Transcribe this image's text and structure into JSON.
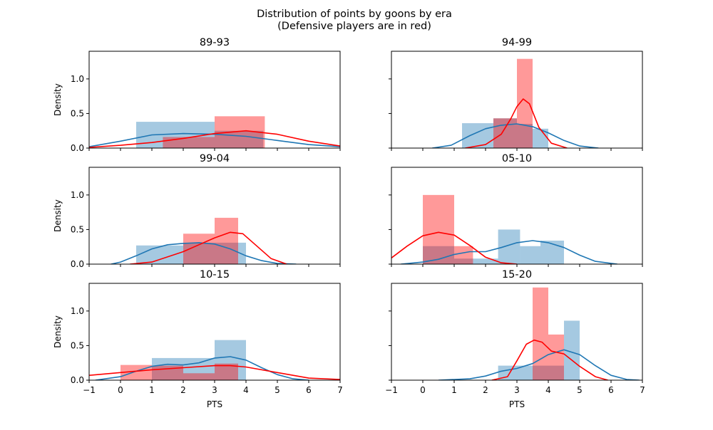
{
  "figure": {
    "suptitle_line1": "Distribution of points by goons by era",
    "suptitle_line2": "(Defensive players are in red)",
    "xlabel": "PTS",
    "ylabel": "Density"
  },
  "colors": {
    "blue_line": "#1f77b4",
    "blue_bar": "#1f77b4",
    "red_line": "#ff0000",
    "red_bar": "#ff0000"
  },
  "chart_data": [
    {
      "type": "bar",
      "title": "89-93",
      "xlim": [
        -1,
        7
      ],
      "ylim": [
        0,
        1.4
      ],
      "yticks": [
        "0.0",
        "0.5",
        "1.0"
      ],
      "series": [
        {
          "color": "blue",
          "bins": [
            {
              "x0": 0.5,
              "x1": 3.0,
              "h": 0.38
            },
            {
              "x0": 3.0,
              "x1": 4.55,
              "h": 0.25
            }
          ],
          "kde": [
            [
              -1.0,
              0.02
            ],
            [
              0.0,
              0.1
            ],
            [
              1.0,
              0.19
            ],
            [
              2.0,
              0.21
            ],
            [
              3.0,
              0.2
            ],
            [
              4.0,
              0.17
            ],
            [
              5.0,
              0.11
            ],
            [
              6.0,
              0.05
            ],
            [
              7.0,
              0.02
            ]
          ]
        },
        {
          "color": "red",
          "bins": [
            {
              "x0": 1.35,
              "x1": 3.0,
              "h": 0.16
            },
            {
              "x0": 3.0,
              "x1": 4.6,
              "h": 0.46
            }
          ],
          "kde": [
            [
              -1.0,
              0.01
            ],
            [
              0.0,
              0.04
            ],
            [
              1.0,
              0.08
            ],
            [
              2.0,
              0.14
            ],
            [
              3.0,
              0.21
            ],
            [
              4.0,
              0.25
            ],
            [
              5.0,
              0.2
            ],
            [
              6.0,
              0.1
            ],
            [
              7.0,
              0.03
            ]
          ]
        }
      ]
    },
    {
      "type": "bar",
      "title": "94-99",
      "xlim": [
        -1,
        7
      ],
      "ylim": [
        0,
        1.4
      ],
      "yticks": [],
      "series": [
        {
          "color": "blue",
          "bins": [
            {
              "x0": 1.25,
              "x1": 2.25,
              "h": 0.36
            },
            {
              "x0": 2.25,
              "x1": 3.0,
              "h": 0.43
            },
            {
              "x0": 3.0,
              "x1": 3.5,
              "h": 0.35
            },
            {
              "x0": 3.5,
              "x1": 4.0,
              "h": 0.28
            }
          ],
          "kde": [
            [
              0.3,
              0.0
            ],
            [
              0.9,
              0.04
            ],
            [
              1.5,
              0.18
            ],
            [
              2.0,
              0.28
            ],
            [
              2.5,
              0.33
            ],
            [
              3.0,
              0.35
            ],
            [
              3.5,
              0.31
            ],
            [
              4.0,
              0.22
            ],
            [
              4.5,
              0.11
            ],
            [
              5.0,
              0.03
            ],
            [
              5.6,
              0.0
            ]
          ]
        },
        {
          "color": "red",
          "bins": [
            {
              "x0": 2.25,
              "x1": 3.0,
              "h": 0.43
            },
            {
              "x0": 3.0,
              "x1": 3.5,
              "h": 1.29
            }
          ],
          "kde": [
            [
              1.35,
              0.0
            ],
            [
              2.0,
              0.05
            ],
            [
              2.5,
              0.2
            ],
            [
              2.8,
              0.42
            ],
            [
              3.0,
              0.6
            ],
            [
              3.2,
              0.71
            ],
            [
              3.4,
              0.64
            ],
            [
              3.7,
              0.3
            ],
            [
              4.1,
              0.07
            ],
            [
              4.6,
              0.0
            ]
          ]
        }
      ]
    },
    {
      "type": "bar",
      "title": "99-04",
      "xlim": [
        -1,
        7
      ],
      "ylim": [
        0,
        1.4
      ],
      "yticks": [
        "0.0",
        "0.5",
        "1.0"
      ],
      "series": [
        {
          "color": "blue",
          "bins": [
            {
              "x0": 0.5,
              "x1": 2.0,
              "h": 0.27
            },
            {
              "x0": 2.0,
              "x1": 4.0,
              "h": 0.31
            }
          ],
          "kde": [
            [
              -0.3,
              0.0
            ],
            [
              0.0,
              0.03
            ],
            [
              0.5,
              0.12
            ],
            [
              1.0,
              0.22
            ],
            [
              1.5,
              0.28
            ],
            [
              2.0,
              0.3
            ],
            [
              2.5,
              0.31
            ],
            [
              3.0,
              0.29
            ],
            [
              3.5,
              0.22
            ],
            [
              4.0,
              0.12
            ],
            [
              4.5,
              0.05
            ],
            [
              5.0,
              0.01
            ],
            [
              5.6,
              0.0
            ]
          ]
        },
        {
          "color": "red",
          "bins": [
            {
              "x0": 2.0,
              "x1": 3.0,
              "h": 0.44
            },
            {
              "x0": 3.0,
              "x1": 3.75,
              "h": 0.67
            }
          ],
          "kde": [
            [
              0.3,
              0.0
            ],
            [
              1.0,
              0.03
            ],
            [
              2.0,
              0.18
            ],
            [
              2.5,
              0.28
            ],
            [
              3.0,
              0.38
            ],
            [
              3.5,
              0.46
            ],
            [
              3.9,
              0.44
            ],
            [
              4.3,
              0.28
            ],
            [
              4.8,
              0.08
            ],
            [
              5.3,
              0.0
            ]
          ]
        }
      ]
    },
    {
      "type": "bar",
      "title": "05-10",
      "xlim": [
        -1,
        7
      ],
      "ylim": [
        0,
        1.4
      ],
      "yticks": [],
      "series": [
        {
          "color": "blue",
          "bins": [
            {
              "x0": 0.0,
              "x1": 1.0,
              "h": 0.26
            },
            {
              "x0": 1.0,
              "x1": 2.4,
              "h": 0.08
            },
            {
              "x0": 2.4,
              "x1": 3.1,
              "h": 0.5
            },
            {
              "x0": 3.1,
              "x1": 3.75,
              "h": 0.26
            },
            {
              "x0": 3.75,
              "x1": 4.5,
              "h": 0.34
            }
          ],
          "kde": [
            [
              -0.7,
              0.0
            ],
            [
              0.0,
              0.03
            ],
            [
              0.5,
              0.07
            ],
            [
              1.0,
              0.14
            ],
            [
              1.5,
              0.18
            ],
            [
              2.0,
              0.18
            ],
            [
              2.5,
              0.24
            ],
            [
              3.0,
              0.31
            ],
            [
              3.5,
              0.34
            ],
            [
              4.0,
              0.31
            ],
            [
              4.5,
              0.24
            ],
            [
              5.0,
              0.13
            ],
            [
              5.5,
              0.04
            ],
            [
              6.2,
              0.0
            ]
          ]
        },
        {
          "color": "red",
          "bins": [
            {
              "x0": 0.0,
              "x1": 1.0,
              "h": 1.0
            },
            {
              "x0": 1.0,
              "x1": 1.6,
              "h": 0.26
            }
          ],
          "kde": [
            [
              -1.0,
              0.09
            ],
            [
              -0.5,
              0.26
            ],
            [
              0.0,
              0.41
            ],
            [
              0.5,
              0.46
            ],
            [
              1.0,
              0.42
            ],
            [
              1.5,
              0.27
            ],
            [
              2.0,
              0.1
            ],
            [
              2.5,
              0.02
            ],
            [
              3.0,
              0.0
            ]
          ]
        }
      ]
    },
    {
      "type": "bar",
      "title": "10-15",
      "xlim": [
        -1,
        7
      ],
      "ylim": [
        0,
        1.4
      ],
      "yticks": [
        "0.0",
        "0.5",
        "1.0"
      ],
      "series": [
        {
          "color": "blue",
          "bins": [
            {
              "x0": 1.0,
              "x1": 2.0,
              "h": 0.32
            },
            {
              "x0": 2.0,
              "x1": 3.0,
              "h": 0.32
            },
            {
              "x0": 3.0,
              "x1": 4.0,
              "h": 0.58
            }
          ],
          "kde": [
            [
              -0.8,
              0.0
            ],
            [
              0.0,
              0.05
            ],
            [
              0.5,
              0.13
            ],
            [
              1.0,
              0.2
            ],
            [
              1.5,
              0.23
            ],
            [
              2.0,
              0.22
            ],
            [
              2.5,
              0.25
            ],
            [
              3.0,
              0.32
            ],
            [
              3.5,
              0.34
            ],
            [
              4.0,
              0.29
            ],
            [
              4.5,
              0.18
            ],
            [
              5.0,
              0.08
            ],
            [
              5.5,
              0.02
            ],
            [
              6.0,
              0.0
            ]
          ]
        },
        {
          "color": "red",
          "bins": [
            {
              "x0": 0.0,
              "x1": 1.0,
              "h": 0.22
            },
            {
              "x0": 1.0,
              "x1": 2.0,
              "h": 0.21
            },
            {
              "x0": 2.0,
              "x1": 3.0,
              "h": 0.1
            },
            {
              "x0": 3.0,
              "x1": 3.75,
              "h": 0.24
            }
          ],
          "kde": [
            [
              -1.0,
              0.07
            ],
            [
              0.0,
              0.11
            ],
            [
              1.0,
              0.15
            ],
            [
              2.0,
              0.18
            ],
            [
              3.0,
              0.21
            ],
            [
              3.5,
              0.21
            ],
            [
              4.0,
              0.19
            ],
            [
              5.0,
              0.11
            ],
            [
              6.0,
              0.03
            ],
            [
              7.0,
              0.01
            ]
          ]
        }
      ]
    },
    {
      "type": "bar",
      "title": "15-20",
      "xlim": [
        -1,
        7
      ],
      "ylim": [
        0,
        1.4
      ],
      "yticks": [],
      "series": [
        {
          "color": "blue",
          "bins": [
            {
              "x0": 2.4,
              "x1": 3.5,
              "h": 0.21
            },
            {
              "x0": 3.5,
              "x1": 4.5,
              "h": 0.21
            },
            {
              "x0": 4.5,
              "x1": 5.0,
              "h": 0.86
            }
          ],
          "kde": [
            [
              0.5,
              0.0
            ],
            [
              1.5,
              0.02
            ],
            [
              2.0,
              0.06
            ],
            [
              2.5,
              0.13
            ],
            [
              3.0,
              0.17
            ],
            [
              3.5,
              0.24
            ],
            [
              4.0,
              0.37
            ],
            [
              4.5,
              0.44
            ],
            [
              5.0,
              0.37
            ],
            [
              5.5,
              0.21
            ],
            [
              6.0,
              0.07
            ],
            [
              6.5,
              0.01
            ],
            [
              6.9,
              0.0
            ]
          ]
        },
        {
          "color": "red",
          "bins": [
            {
              "x0": 3.5,
              "x1": 4.0,
              "h": 1.34
            },
            {
              "x0": 4.0,
              "x1": 4.5,
              "h": 0.66
            }
          ],
          "kde": [
            [
              2.2,
              0.0
            ],
            [
              2.7,
              0.05
            ],
            [
              3.0,
              0.28
            ],
            [
              3.3,
              0.52
            ],
            [
              3.55,
              0.58
            ],
            [
              3.8,
              0.55
            ],
            [
              4.1,
              0.42
            ],
            [
              4.5,
              0.38
            ],
            [
              5.0,
              0.2
            ],
            [
              5.5,
              0.05
            ],
            [
              5.9,
              0.0
            ]
          ]
        }
      ]
    }
  ]
}
